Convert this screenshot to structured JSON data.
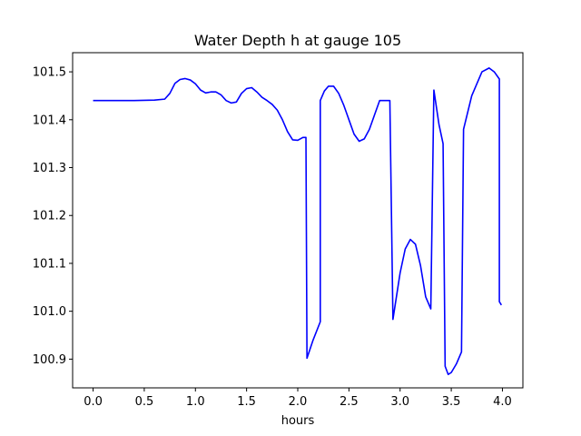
{
  "chart_data": {
    "type": "line",
    "title": "Water Depth h at gauge 105",
    "xlabel": "hours",
    "ylabel": "",
    "xlim": [
      -0.2,
      4.2
    ],
    "ylim": [
      100.84,
      101.54
    ],
    "xticks": [
      0.0,
      0.5,
      1.0,
      1.5,
      2.0,
      2.5,
      3.0,
      3.5,
      4.0
    ],
    "xtick_labels": [
      "0.0",
      "0.5",
      "1.0",
      "1.5",
      "2.0",
      "2.5",
      "3.0",
      "3.5",
      "4.0"
    ],
    "yticks": [
      100.9,
      101.0,
      101.1,
      101.2,
      101.3,
      101.4,
      101.5
    ],
    "ytick_labels": [
      "100.9",
      "101.0",
      "101.1",
      "101.2",
      "101.3",
      "101.4",
      "101.5"
    ],
    "grid": false,
    "series": [
      {
        "color": "#0000ff",
        "x": [
          0.0,
          0.2,
          0.4,
          0.6,
          0.7,
          0.75,
          0.8,
          0.85,
          0.9,
          0.95,
          1.0,
          1.05,
          1.1,
          1.15,
          1.2,
          1.25,
          1.3,
          1.35,
          1.4,
          1.45,
          1.5,
          1.55,
          1.6,
          1.65,
          1.7,
          1.75,
          1.8,
          1.85,
          1.9,
          1.95,
          2.0,
          2.05,
          2.08,
          2.09,
          2.09,
          2.15,
          2.22,
          2.22,
          2.26,
          2.3,
          2.35,
          2.4,
          2.45,
          2.5,
          2.55,
          2.6,
          2.65,
          2.7,
          2.75,
          2.8,
          2.85,
          2.9,
          2.93,
          2.93,
          3.0,
          3.05,
          3.1,
          3.15,
          3.2,
          3.25,
          3.3,
          3.33,
          3.33,
          3.38,
          3.42,
          3.44,
          3.44,
          3.47,
          3.5,
          3.55,
          3.6,
          3.62,
          3.62,
          3.7,
          3.8,
          3.87,
          3.92,
          3.97,
          3.97,
          3.99
        ],
        "y": [
          101.44,
          101.44,
          101.44,
          101.441,
          101.443,
          101.455,
          101.476,
          101.484,
          101.486,
          101.483,
          101.475,
          101.462,
          101.456,
          101.458,
          101.458,
          101.452,
          101.44,
          101.435,
          101.437,
          101.455,
          101.465,
          101.467,
          101.458,
          101.447,
          101.44,
          101.432,
          101.42,
          101.4,
          101.375,
          101.358,
          101.357,
          101.363,
          101.363,
          100.902,
          100.902,
          100.94,
          100.978,
          101.44,
          101.46,
          101.47,
          101.47,
          101.455,
          101.43,
          101.4,
          101.37,
          101.355,
          101.36,
          101.38,
          101.41,
          101.44,
          101.44,
          101.44,
          100.983,
          100.983,
          101.08,
          101.13,
          101.15,
          101.14,
          101.095,
          101.03,
          101.005,
          101.462,
          101.462,
          101.39,
          101.35,
          100.885,
          100.885,
          100.868,
          100.872,
          100.89,
          100.915,
          101.38,
          101.38,
          101.45,
          101.5,
          101.508,
          101.5,
          101.485,
          101.02,
          101.013
        ]
      }
    ]
  }
}
